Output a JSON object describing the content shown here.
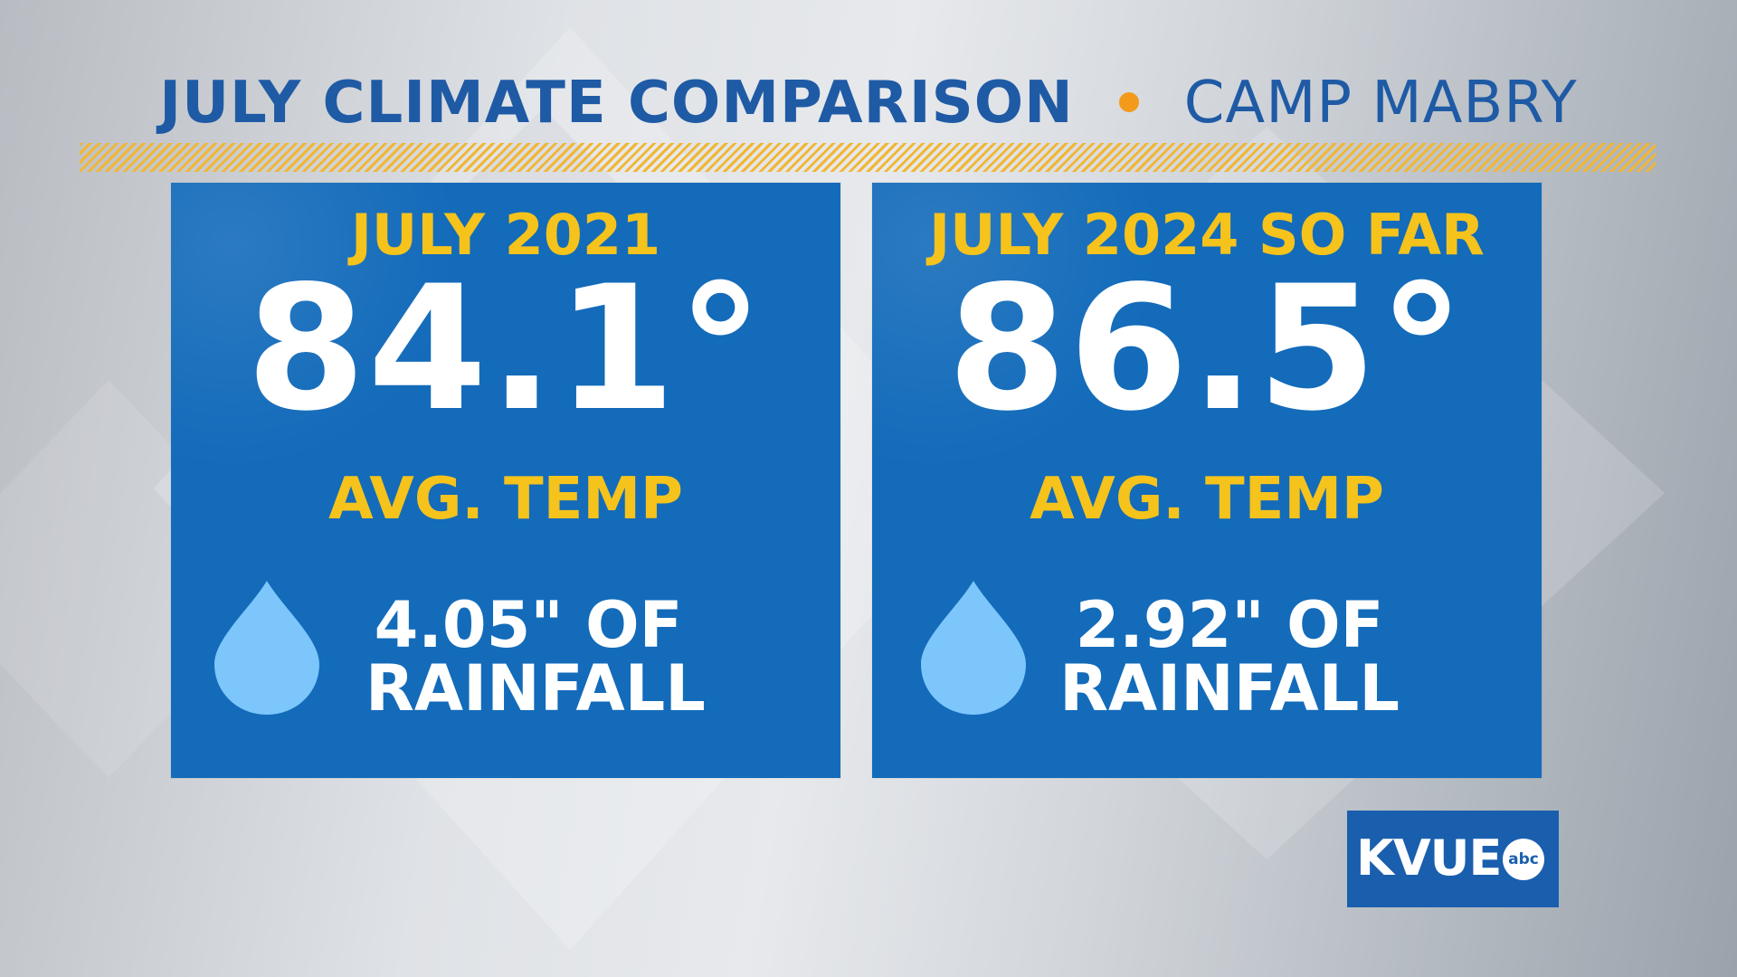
{
  "header": {
    "title": "JULY CLIMATE COMPARISON",
    "subtitle": "CAMP MABRY"
  },
  "cards": [
    {
      "title": "JULY 2021",
      "temperature": "84.1°",
      "temperature_label": "AVG. TEMP",
      "rain_amount": "4.05\" OF",
      "rain_word": "RAINFALL"
    },
    {
      "title": "JULY 2024 SO FAR",
      "temperature": "86.5°",
      "temperature_label": "AVG. TEMP",
      "rain_amount": "2.92\" OF",
      "rain_word": "RAINFALL"
    }
  ],
  "logo": {
    "text": "KVUE",
    "badge": "abc"
  },
  "icons": {
    "rain": "raindrop-icon",
    "separator": "dot-icon"
  },
  "colors": {
    "header_text": "#1f5aa5",
    "separator_dot": "#f39a1b",
    "card_background": "#136bba",
    "accent_text": "#f5c31c",
    "value_text": "#ffffff",
    "raindrop": "#7cc6fb",
    "logo_background": "#1a5fae"
  }
}
